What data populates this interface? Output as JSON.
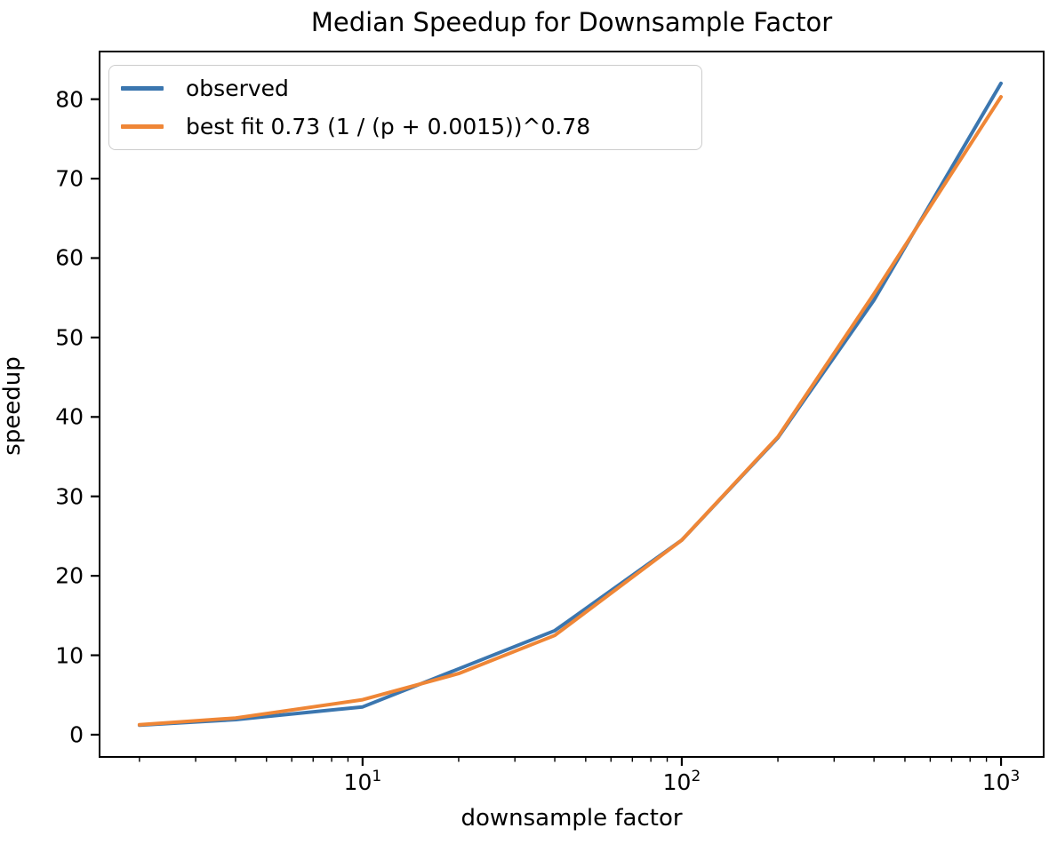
{
  "figure": {
    "background": "#ffffff",
    "text_color": "#000000",
    "spine_color": "#000000"
  },
  "chart_data": {
    "type": "line",
    "title": "Median Speedup for Downsample Factor",
    "xlabel": "downsample factor",
    "ylabel": "speedup",
    "x_scale": "log",
    "y_scale": "linear",
    "xlim": [
      1.5,
      1360
    ],
    "ylim": [
      -2.8,
      86
    ],
    "grid": false,
    "x": [
      2,
      4,
      10,
      20,
      40,
      100,
      200,
      400,
      1000
    ],
    "series": [
      {
        "name": "observed",
        "color": "#3b76af",
        "values": [
          1.2,
          1.9,
          3.5,
          8.3,
          13.1,
          24.5,
          37.4,
          54.7,
          82.0
        ]
      },
      {
        "name": "best fit 0.73 (1 / (p + 0.0015))^0.78",
        "color": "#ef8636",
        "values": [
          1.25,
          2.1,
          4.4,
          7.7,
          12.5,
          24.5,
          37.5,
          55.5,
          80.3
        ]
      }
    ],
    "x_major_ticks": [
      {
        "value": 10,
        "base": "10",
        "exponent": "1"
      },
      {
        "value": 100,
        "base": "10",
        "exponent": "2"
      },
      {
        "value": 1000,
        "base": "10",
        "exponent": "3"
      }
    ],
    "x_minor_ticks": [
      2,
      3,
      4,
      5,
      6,
      7,
      8,
      9,
      20,
      30,
      40,
      50,
      60,
      70,
      80,
      90,
      200,
      300,
      400,
      500,
      600,
      700,
      800,
      900
    ],
    "y_ticks": [
      0,
      10,
      20,
      30,
      40,
      50,
      60,
      70,
      80
    ],
    "legend": {
      "position": "upper left",
      "entries": [
        "observed",
        "best fit 0.73 (1 / (p + 0.0015))^0.78"
      ]
    }
  }
}
